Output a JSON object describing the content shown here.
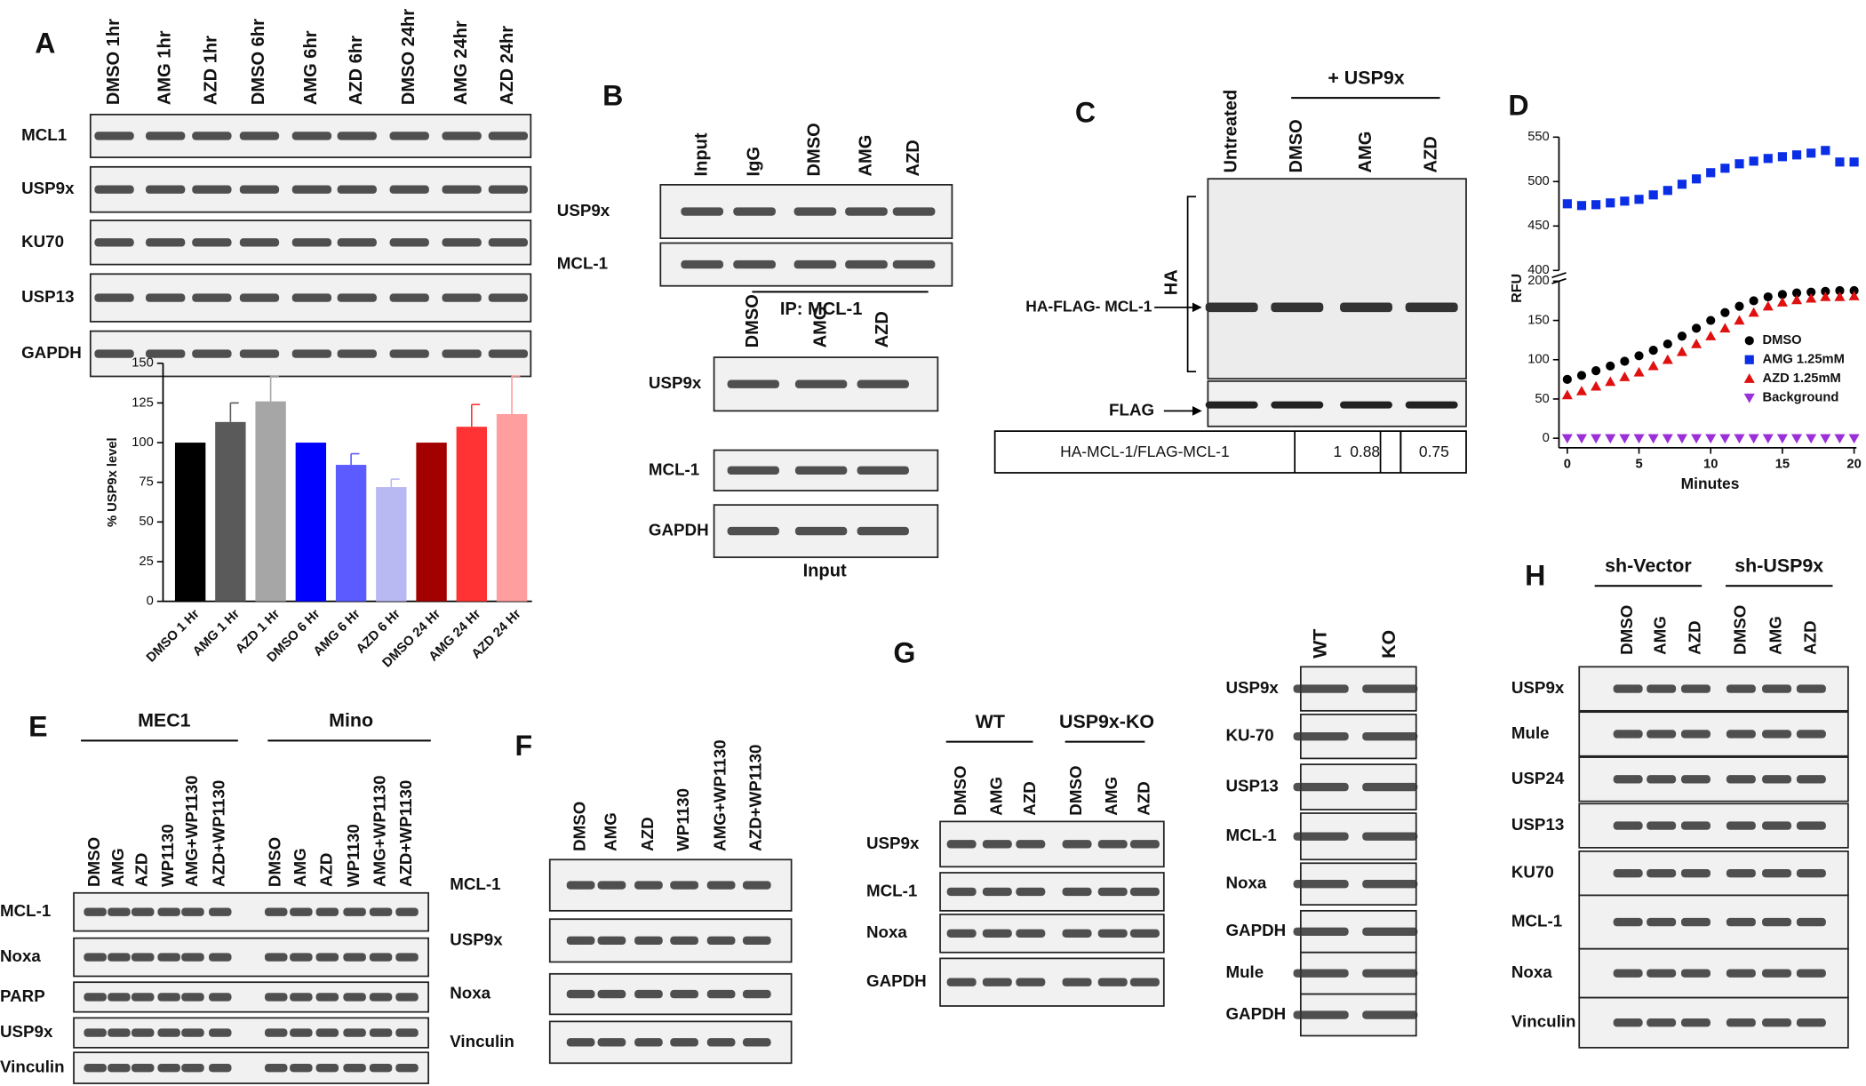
{
  "chart_data": [
    {
      "type": "bar",
      "ylabel": "% USP9x level",
      "categories": [
        "DMSO 1 Hr",
        "AMG 1 Hr",
        "AZD 1 Hr",
        "DMSO 6 Hr",
        "AMG 6 Hr",
        "AZD 6 Hr",
        "DMSO 24 Hr",
        "AMG 24 Hr",
        "AZD 24 Hr"
      ],
      "values": [
        100,
        113,
        126,
        100,
        86,
        72,
        100,
        110,
        118
      ],
      "errors": [
        0,
        12,
        16,
        0,
        7,
        5,
        0,
        14,
        24
      ],
      "colors": [
        "#000000",
        "#5a5a5a",
        "#a6a6a6",
        "#0000ff",
        "#5b5bff",
        "#b8b8f2",
        "#a30000",
        "#ff3333",
        "#ff9e9e"
      ],
      "ylim": [
        0,
        150
      ],
      "yticks": [
        0,
        25,
        50,
        75,
        100,
        125,
        150
      ]
    },
    {
      "type": "scatter",
      "xlabel": "Minutes",
      "ylabel": "RFU",
      "x": [
        0,
        1,
        2,
        3,
        4,
        5,
        6,
        7,
        8,
        9,
        10,
        11,
        12,
        13,
        14,
        15,
        16,
        17,
        18,
        19,
        20
      ],
      "series": [
        {
          "name": "DMSO",
          "color": "#000000",
          "marker": "circle",
          "values": [
            75,
            80,
            86,
            92,
            98,
            105,
            112,
            120,
            130,
            140,
            150,
            160,
            168,
            175,
            180,
            183,
            185,
            186,
            187,
            188,
            188
          ]
        },
        {
          "name": "AMG 1.25mM",
          "color": "#0a2ee6",
          "marker": "square",
          "axis": "y2",
          "values": [
            475,
            473,
            474,
            476,
            478,
            480,
            485,
            490,
            497,
            503,
            510,
            515,
            520,
            523,
            526,
            528,
            530,
            532,
            535,
            522,
            522
          ]
        },
        {
          "name": "AZD 1.25mM",
          "color": "#e01010",
          "marker": "triangle-up",
          "values": [
            55,
            60,
            66,
            72,
            78,
            84,
            92,
            100,
            110,
            120,
            130,
            140,
            150,
            160,
            168,
            173,
            176,
            178,
            180,
            180,
            181
          ]
        },
        {
          "name": "Background",
          "color": "#9b30d9",
          "marker": "triangle-down",
          "values": [
            0,
            0,
            0,
            0,
            0,
            0,
            0,
            0,
            0,
            0,
            0,
            0,
            0,
            0,
            0,
            0,
            0,
            0,
            0,
            0,
            0
          ]
        }
      ],
      "xlim": [
        0,
        20
      ],
      "xticks": [
        0,
        5,
        10,
        15,
        20
      ],
      "ylim": [
        0,
        200
      ],
      "yticks": [
        0,
        50,
        100,
        150,
        200
      ],
      "y2lim": [
        400,
        550
      ],
      "y2ticks": [
        400,
        450,
        500,
        550
      ]
    }
  ],
  "blots": {
    "A": {
      "label": "A",
      "lanes": [
        "DMSO 1hr",
        "AMG 1hr",
        "AZD 1hr",
        "DMSO 6hr",
        "AMG 6hr",
        "AZD 6hr",
        "DMSO 24hr",
        "AMG 24hr",
        "AZD 24hr"
      ],
      "rows": [
        "MCL1",
        "USP9x",
        "KU70",
        "USP13",
        "GAPDH"
      ]
    },
    "B": {
      "label": "B",
      "lanes": [
        "Input",
        "IgG",
        "DMSO",
        "AMG",
        "AZD"
      ],
      "rows": [
        "USP9x",
        "MCL-1"
      ],
      "caption": "IP: MCL-1",
      "input_lanes": [
        "DMSO",
        "AMG",
        "AZD"
      ],
      "input_rows": [
        "USP9x",
        "MCL-1",
        "GAPDH"
      ],
      "input_caption": "Input"
    },
    "C": {
      "label": "C",
      "group": "+ USP9x",
      "lanes": [
        "Untreated",
        "DMSO",
        "AMG",
        "AZD"
      ],
      "bracket": "HA",
      "band": "HA-FLAG- MCL-1",
      "flag": "FLAG",
      "table": [
        "HA-MCL-1/FLAG-MCL-1",
        "1",
        "0.88",
        "0.75"
      ]
    },
    "D": {
      "label": "D"
    },
    "E": {
      "label": "E",
      "groups": [
        "MEC1",
        "Mino"
      ],
      "lanes": [
        "DMSO",
        "AMG",
        "AZD",
        "WP1130",
        "AMG+WP1130",
        "AZD+WP1130",
        "DMSO",
        "AMG",
        "AZD",
        "WP1130",
        "AMG+WP1130",
        "AZD+WP1130"
      ],
      "rows": [
        "MCL-1",
        "Noxa",
        "PARP",
        "USP9x",
        "Vinculin"
      ]
    },
    "F": {
      "label": "F",
      "lanes": [
        "DMSO",
        "AMG",
        "AZD",
        "WP1130",
        "AMG+WP1130",
        "AZD+WP1130"
      ],
      "rows": [
        "MCL-1",
        "USP9x",
        "Noxa",
        "Vinculin"
      ]
    },
    "G": {
      "label": "G",
      "groups": [
        "WT",
        "USP9x-KO"
      ],
      "lanes": [
        "DMSO",
        "AMG",
        "AZD",
        "DMSO",
        "AMG",
        "AZD"
      ],
      "rows": [
        "USP9x",
        "MCL-1",
        "Noxa",
        "GAPDH"
      ],
      "right_lanes": [
        "WT",
        "KO"
      ],
      "right_rows": [
        "USP9x",
        "KU-70",
        "USP13",
        "MCL-1",
        "Noxa",
        "GAPDH",
        "Mule",
        "GAPDH"
      ]
    },
    "H": {
      "label": "H",
      "groups": [
        "sh-Vector",
        "sh-USP9x"
      ],
      "lanes": [
        "DMSO",
        "AMG",
        "AZD",
        "DMSO",
        "AMG",
        "AZD"
      ],
      "rows": [
        "USP9x",
        "Mule",
        "USP24",
        "USP13",
        "KU70",
        "MCL-1",
        "Noxa",
        "Vinculin"
      ]
    }
  }
}
